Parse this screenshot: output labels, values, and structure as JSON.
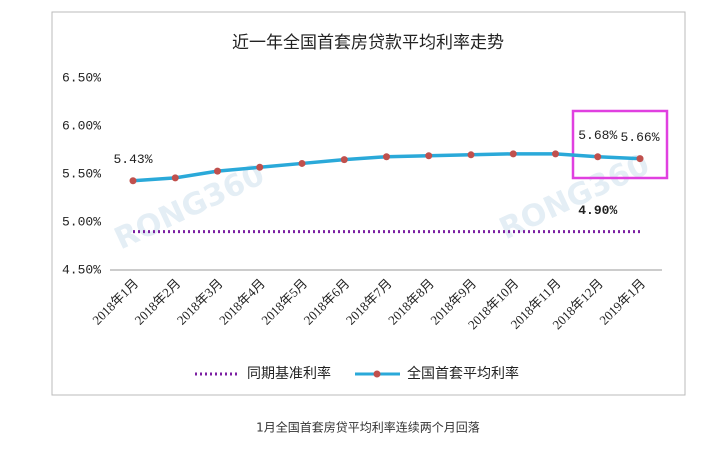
{
  "chart_data": {
    "type": "line",
    "title": "近一年全国首套房贷款平均利率走势",
    "caption": "1月全国首套房贷平均利率连续两个月回落",
    "watermark": "RONG360",
    "categories": [
      "2018年1月",
      "2018年2月",
      "2018年3月",
      "2018年4月",
      "2018年5月",
      "2018年6月",
      "2018年7月",
      "2018年8月",
      "2018年9月",
      "2018年10月",
      "2018年11月",
      "2018年12月",
      "2019年1月"
    ],
    "series": [
      {
        "name": "同期基准利率",
        "color": "#7b1fa2",
        "style": "dotted",
        "values": [
          4.9,
          4.9,
          4.9,
          4.9,
          4.9,
          4.9,
          4.9,
          4.9,
          4.9,
          4.9,
          4.9,
          4.9,
          4.9
        ],
        "value_labels": [
          null,
          null,
          null,
          null,
          null,
          null,
          null,
          null,
          null,
          null,
          null,
          "4.90%",
          null
        ]
      },
      {
        "name": "全国首套平均利率",
        "color": "#2aa9d9",
        "marker_color": "#c0504d",
        "style": "solid",
        "values": [
          5.43,
          5.46,
          5.53,
          5.57,
          5.61,
          5.65,
          5.68,
          5.69,
          5.7,
          5.71,
          5.71,
          5.68,
          5.66
        ],
        "value_labels": [
          "5.43%",
          null,
          null,
          null,
          null,
          null,
          null,
          null,
          null,
          null,
          null,
          "5.68%",
          "5.66%"
        ]
      }
    ],
    "ylim": [
      4.5,
      6.5
    ],
    "yticks": [
      {
        "value": 4.5,
        "label": "4.50%"
      },
      {
        "value": 5.0,
        "label": "5.00%"
      },
      {
        "value": 5.5,
        "label": "5.50%"
      },
      {
        "value": 6.0,
        "label": "6.00%"
      },
      {
        "value": 6.5,
        "label": "6.50%"
      }
    ],
    "grid": false
  }
}
